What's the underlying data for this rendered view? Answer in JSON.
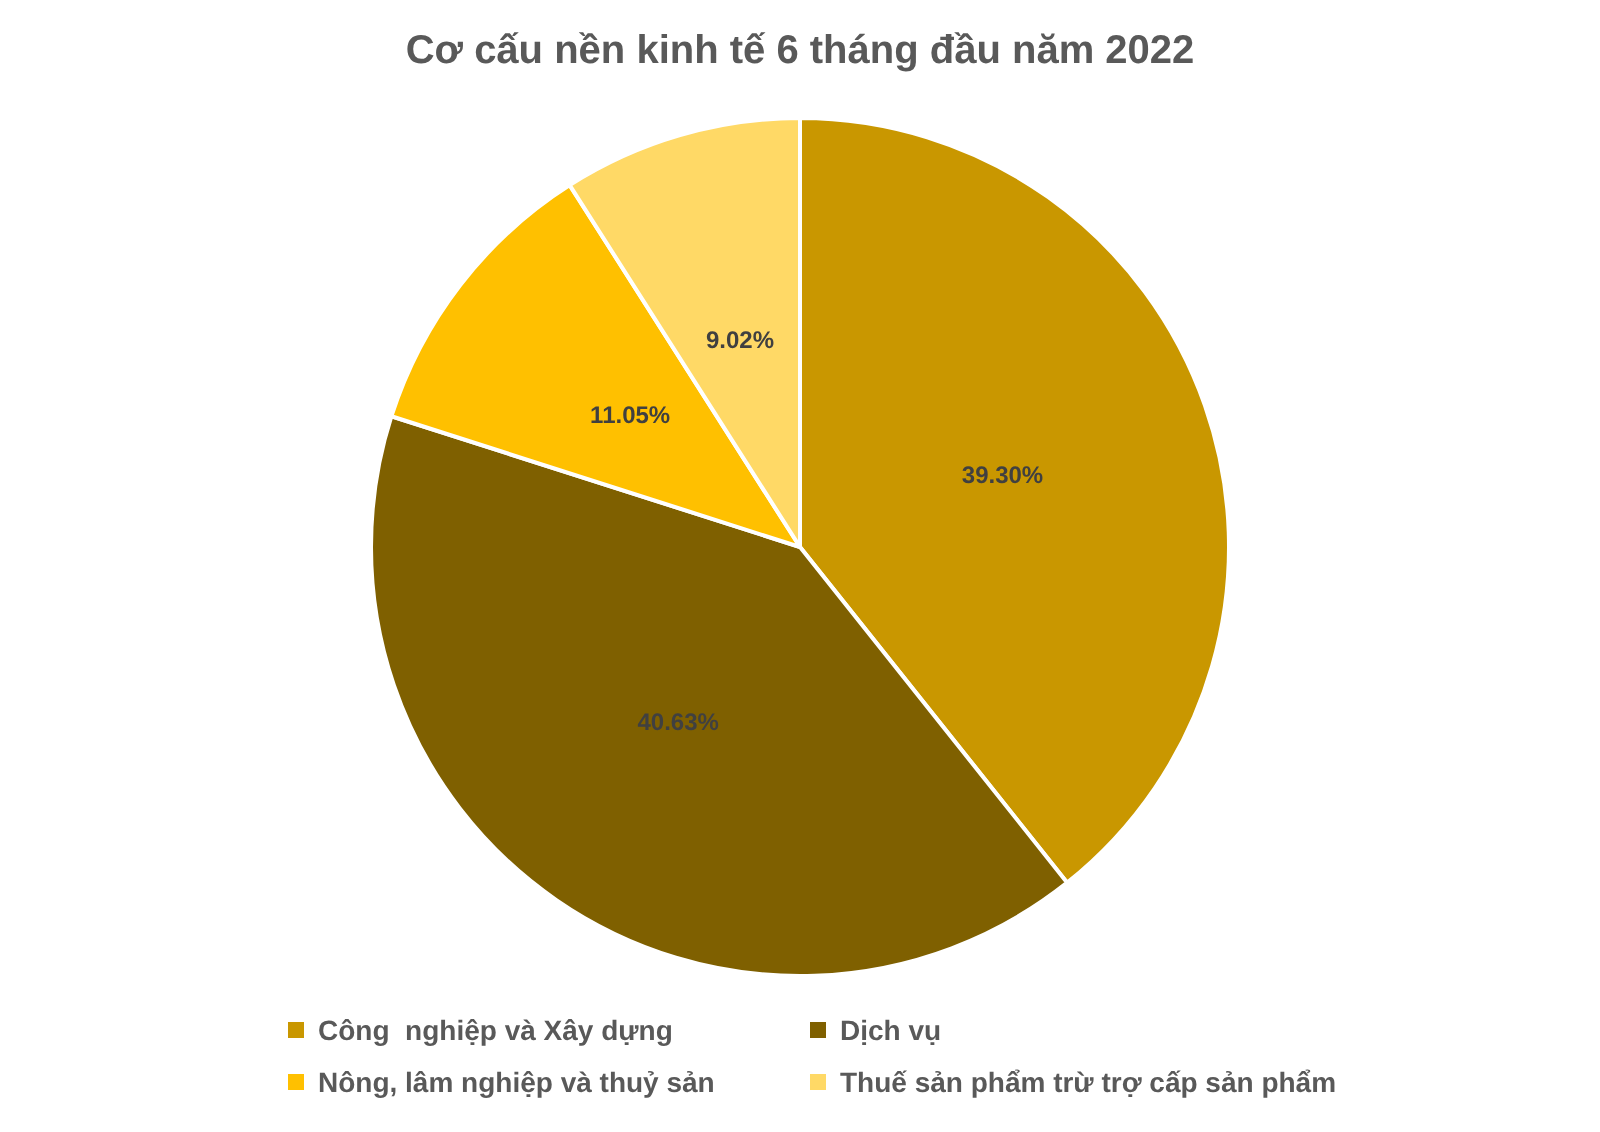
{
  "chart_data": {
    "type": "pie",
    "title": "Cơ cấu nền kinh tế 6 tháng đầu năm 2022",
    "categories": [
      "Công  nghiệp và Xây dựng",
      "Dịch vụ",
      "Nông, lâm nghiệp và thuỷ sản",
      "Thuế sản phẩm trừ trợ cấp sản phẩm"
    ],
    "values": [
      39.3,
      40.63,
      11.05,
      9.02
    ],
    "colors": [
      "#c99700",
      "#7f6000",
      "#ffc000",
      "#ffd966"
    ],
    "value_labels": [
      "39.30%",
      "40.63%",
      "11.05%",
      "9.02%"
    ],
    "legend": "bottom"
  }
}
